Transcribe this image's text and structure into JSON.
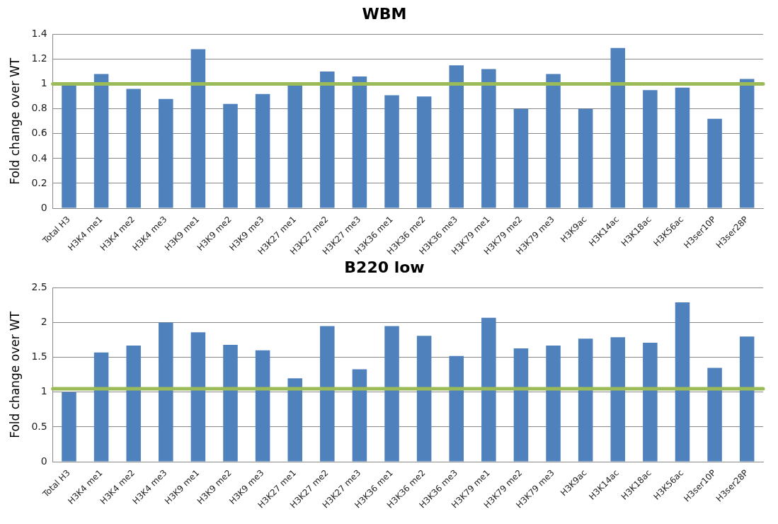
{
  "chart_data": [
    {
      "type": "bar",
      "title": "WBM",
      "ylabel": "Fold change over WT",
      "categories": [
        "Total H3",
        "H3K4 me1",
        "H3K4 me2",
        "H3K4 me3",
        "H3K9 me1",
        "H3K9 me2",
        "H3K9 me3",
        "H3K27 me1",
        "H3K27 me2",
        "H3K27 me3",
        "H3K36 me1",
        "H3K36 me2",
        "H3K36 me3",
        "H3K79 me1",
        "H3K79 me2",
        "H3K79 me3",
        "H3K9ac",
        "H3K14ac",
        "H3K18ac",
        "H3K56ac",
        "H3ser10P",
        "H3ser28P"
      ],
      "values": [
        1.0,
        1.08,
        0.96,
        0.88,
        1.28,
        0.84,
        0.92,
        1.0,
        1.1,
        1.06,
        0.91,
        0.9,
        1.15,
        1.12,
        0.8,
        1.08,
        0.8,
        1.29,
        0.95,
        0.97,
        0.72,
        1.04
      ],
      "color": "#4f81bd",
      "ylim": [
        0,
        1.4
      ],
      "yticks": [
        0,
        0.2,
        0.4,
        0.6,
        0.8,
        1,
        1.2,
        1.4
      ],
      "grid": "y",
      "ref_lines": [
        {
          "axis": "y",
          "value": 1,
          "color": "#9bbb59"
        }
      ]
    },
    {
      "type": "bar",
      "title": "B220 low",
      "ylabel": "Fold change over WT",
      "categories": [
        "Total H3",
        "H3K4 me1",
        "H3K4 me2",
        "H3K4 me3",
        "H3K9 me1",
        "H3K9 me2",
        "H3K9 me3",
        "H3K27 me1",
        "H3K27 me2",
        "H3K27 me3",
        "H3K36 me1",
        "H3K36 me2",
        "H3K36 me3",
        "H3K79 me1",
        "H3K79 me2",
        "H3K79 me3",
        "H3K9ac",
        "H3K14ac",
        "H3K18ac",
        "H3K56ac",
        "H3ser10P",
        "H3ser28P"
      ],
      "values": [
        1.0,
        1.57,
        1.67,
        2.0,
        1.86,
        1.68,
        1.6,
        1.2,
        1.95,
        1.33,
        1.95,
        1.81,
        1.52,
        2.07,
        1.63,
        1.67,
        1.77,
        1.79,
        1.71,
        2.29,
        1.35,
        1.8
      ],
      "color": "#4f81bd",
      "ylim": [
        0,
        2.5
      ],
      "yticks": [
        0,
        0.5,
        1,
        1.5,
        2,
        2.5
      ],
      "grid": "y",
      "ref_lines": [
        {
          "axis": "y",
          "value": 1.05,
          "color": "#9bbb59"
        }
      ]
    }
  ]
}
